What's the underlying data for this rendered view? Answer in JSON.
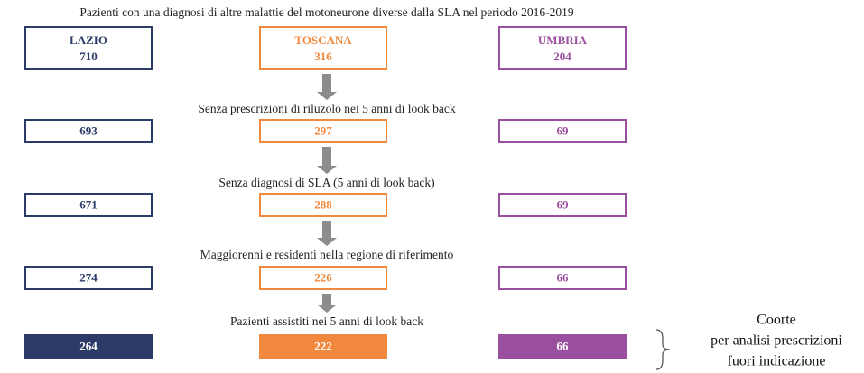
{
  "title": "Pazienti con una diagnosi di altre malattie del motoneurone diverse dalla SLA nel periodo 2016-2019",
  "regions": [
    {
      "name": "LAZIO",
      "value": 710,
      "color": "#2b3a67"
    },
    {
      "name": "TOSCANA",
      "value": 316,
      "color": "#f0883e"
    },
    {
      "name": "UMBRIA",
      "value": 204,
      "color": "#9b4f9f"
    }
  ],
  "steps": [
    {
      "label": "Senza prescrizioni di riluzolo nei 5 anni di look back",
      "values": [
        693,
        297,
        69
      ]
    },
    {
      "label": "Senza diagnosi di SLA (5 anni di look back)",
      "values": [
        671,
        288,
        69
      ]
    },
    {
      "label": "Maggiorenni e residenti nella regione di riferimento",
      "values": [
        274,
        226,
        66
      ]
    },
    {
      "label": "Pazienti assistiti nei 5 anni di look back",
      "values": [
        264,
        222,
        66
      ]
    }
  ],
  "cohort_label": [
    "Coorte",
    "per analisi prescrizioni",
    "fuori indicazione"
  ]
}
